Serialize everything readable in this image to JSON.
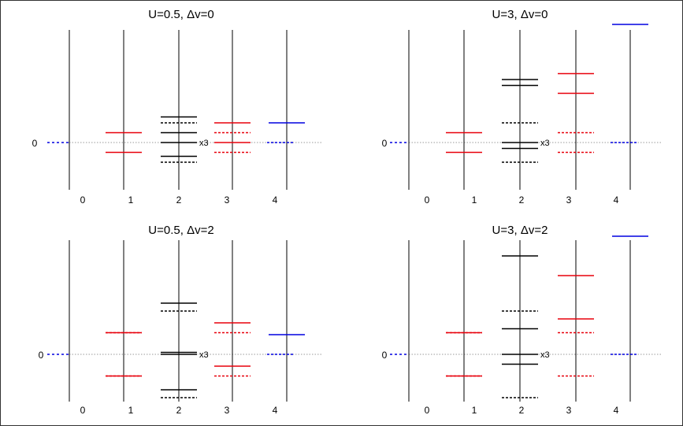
{
  "colors": {
    "n1": "#e8000b",
    "n2": "#000000",
    "n3": "#e8000b",
    "n4": "#0000e0",
    "zero_line": "#0000e0"
  },
  "chart_data": [
    {
      "type": "energy-level diagram",
      "title": "U=0.5, Δv=0",
      "xlabel": "",
      "ylabel": "",
      "categories": [
        "0",
        "1",
        "2",
        "3",
        "4"
      ],
      "zero_label": "0",
      "ylim": [
        -2.3,
        4.7
      ],
      "levels": [
        {
          "n": 0,
          "energy": 0.0,
          "style": "dashed"
        },
        {
          "n": 1,
          "energy": 0.5,
          "style": "solid"
        },
        {
          "n": 1,
          "energy": -0.5,
          "style": "solid"
        },
        {
          "n": 2,
          "energy": 1.3,
          "style": "solid"
        },
        {
          "n": 2,
          "energy": 1.0,
          "style": "dashed"
        },
        {
          "n": 2,
          "energy": 0.5,
          "style": "solid"
        },
        {
          "n": 2,
          "energy": 0.0,
          "style": "solid",
          "label": "x3"
        },
        {
          "n": 2,
          "energy": -0.7,
          "style": "solid"
        },
        {
          "n": 2,
          "energy": -1.0,
          "style": "dashed"
        },
        {
          "n": 3,
          "energy": 1.0,
          "style": "solid"
        },
        {
          "n": 3,
          "energy": 0.5,
          "style": "dashed"
        },
        {
          "n": 3,
          "energy": 0.0,
          "style": "solid"
        },
        {
          "n": 3,
          "energy": -0.5,
          "style": "dashed"
        },
        {
          "n": 4,
          "energy": 1.0,
          "style": "solid"
        },
        {
          "n": 4,
          "energy": 0.0,
          "style": "dashed"
        }
      ]
    },
    {
      "type": "energy-level diagram",
      "title": "U=3, Δv=0",
      "xlabel": "",
      "ylabel": "",
      "categories": [
        "0",
        "1",
        "2",
        "3",
        "4"
      ],
      "zero_label": "0",
      "ylim": [
        -2.3,
        6.2
      ],
      "levels": [
        {
          "n": 0,
          "energy": 0.0,
          "style": "dashed"
        },
        {
          "n": 1,
          "energy": 0.5,
          "style": "solid"
        },
        {
          "n": 1,
          "energy": -0.5,
          "style": "solid"
        },
        {
          "n": 2,
          "energy": 3.2,
          "style": "solid"
        },
        {
          "n": 2,
          "energy": 2.9,
          "style": "solid"
        },
        {
          "n": 2,
          "energy": 1.0,
          "style": "dashed"
        },
        {
          "n": 2,
          "energy": 0.0,
          "style": "solid",
          "label": "x3"
        },
        {
          "n": 2,
          "energy": -0.3,
          "style": "solid"
        },
        {
          "n": 2,
          "energy": -1.0,
          "style": "dashed"
        },
        {
          "n": 3,
          "energy": 3.5,
          "style": "solid"
        },
        {
          "n": 3,
          "energy": 2.5,
          "style": "solid"
        },
        {
          "n": 3,
          "energy": 0.5,
          "style": "dashed"
        },
        {
          "n": 3,
          "energy": -0.5,
          "style": "dashed"
        },
        {
          "n": 4,
          "energy": 6.0,
          "style": "solid"
        },
        {
          "n": 4,
          "energy": 0.0,
          "style": "dashed"
        }
      ]
    },
    {
      "type": "energy-level diagram",
      "title": "U=0.5, Δv=2",
      "xlabel": "",
      "ylabel": "",
      "categories": [
        "0",
        "1",
        "2",
        "3",
        "4"
      ],
      "zero_label": "0",
      "ylim": [
        -2.6,
        5.9
      ],
      "levels": [
        {
          "n": 0,
          "energy": 0.0,
          "style": "dashed"
        },
        {
          "n": 1,
          "energy": 1.1,
          "style": "solid"
        },
        {
          "n": 1,
          "energy": 1.1,
          "style": "dashed"
        },
        {
          "n": 1,
          "energy": -1.1,
          "style": "solid"
        },
        {
          "n": 1,
          "energy": -1.1,
          "style": "dashed"
        },
        {
          "n": 2,
          "energy": 2.6,
          "style": "solid"
        },
        {
          "n": 2,
          "energy": 2.2,
          "style": "dashed"
        },
        {
          "n": 2,
          "energy": 0.1,
          "style": "solid"
        },
        {
          "n": 2,
          "energy": 0.0,
          "style": "solid",
          "label": "x3"
        },
        {
          "n": 2,
          "energy": -1.8,
          "style": "solid"
        },
        {
          "n": 2,
          "energy": -2.2,
          "style": "dashed"
        },
        {
          "n": 3,
          "energy": 1.6,
          "style": "solid"
        },
        {
          "n": 3,
          "energy": 1.1,
          "style": "dashed"
        },
        {
          "n": 3,
          "energy": -0.6,
          "style": "solid"
        },
        {
          "n": 3,
          "energy": -1.1,
          "style": "dashed"
        },
        {
          "n": 4,
          "energy": 1.0,
          "style": "solid"
        },
        {
          "n": 4,
          "energy": 0.0,
          "style": "dashed"
        }
      ]
    },
    {
      "type": "energy-level diagram",
      "title": "U=3, Δv=2",
      "xlabel": "",
      "ylabel": "",
      "categories": [
        "0",
        "1",
        "2",
        "3",
        "4"
      ],
      "zero_label": "0",
      "ylim": [
        -2.6,
        6.9
      ],
      "levels": [
        {
          "n": 0,
          "energy": 0.0,
          "style": "dashed"
        },
        {
          "n": 1,
          "energy": 1.1,
          "style": "solid"
        },
        {
          "n": 1,
          "energy": 1.1,
          "style": "dashed"
        },
        {
          "n": 1,
          "energy": -1.1,
          "style": "solid"
        },
        {
          "n": 1,
          "energy": -1.1,
          "style": "dashed"
        },
        {
          "n": 2,
          "energy": 5.0,
          "style": "solid"
        },
        {
          "n": 2,
          "energy": 2.2,
          "style": "dashed"
        },
        {
          "n": 2,
          "energy": 1.3,
          "style": "solid"
        },
        {
          "n": 2,
          "energy": 0.0,
          "style": "solid",
          "label": "x3"
        },
        {
          "n": 2,
          "energy": -0.5,
          "style": "solid"
        },
        {
          "n": 2,
          "energy": -2.2,
          "style": "dashed"
        },
        {
          "n": 3,
          "energy": 4.0,
          "style": "solid"
        },
        {
          "n": 3,
          "energy": 1.8,
          "style": "solid"
        },
        {
          "n": 3,
          "energy": 1.1,
          "style": "dashed"
        },
        {
          "n": 3,
          "energy": -1.1,
          "style": "dashed"
        },
        {
          "n": 4,
          "energy": 6.0,
          "style": "solid"
        },
        {
          "n": 4,
          "energy": 0.0,
          "style": "dashed"
        }
      ]
    }
  ]
}
